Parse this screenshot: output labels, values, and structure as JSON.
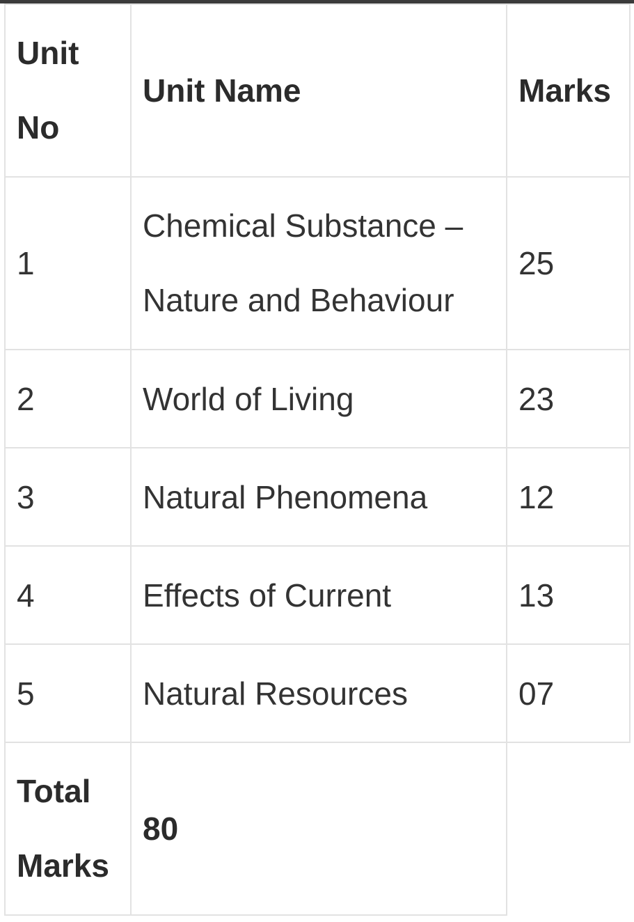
{
  "table": {
    "headers": {
      "unit_no": [
        "Unit",
        "No"
      ],
      "unit_name": "Unit Name",
      "marks": "Marks"
    },
    "rows": [
      {
        "unit_no": "1",
        "unit_name": [
          "Chemical Substance –",
          "Nature and Behaviour"
        ],
        "marks": "25"
      },
      {
        "unit_no": "2",
        "unit_name": "World of Living",
        "marks": "23"
      },
      {
        "unit_no": "3",
        "unit_name": "Natural Phenomena",
        "marks": "12"
      },
      {
        "unit_no": "4",
        "unit_name": "Effects of Current",
        "marks": "13"
      },
      {
        "unit_no": "5",
        "unit_name": "Natural Resources",
        "marks": "07"
      }
    ],
    "total": {
      "label": [
        "Total",
        "Marks"
      ],
      "value": "80"
    }
  }
}
